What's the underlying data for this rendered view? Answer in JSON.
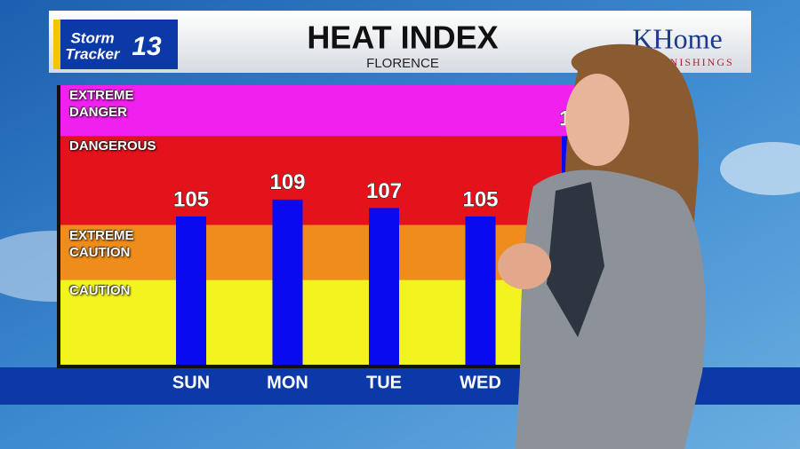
{
  "chart_data": {
    "type": "bar",
    "title": "HEAT INDEX",
    "subtitle": "FLORENCE",
    "logo": {
      "line1": "Storm",
      "line2": "Tracker",
      "number": "13"
    },
    "sponsor": {
      "name": "KHome",
      "tagline": "FURNISHINGS"
    },
    "categories": [
      "SUN",
      "MON",
      "TUE",
      "WED",
      null
    ],
    "values": [
      105,
      109,
      107,
      105,
      124
    ],
    "color": "#0a0af0",
    "ylim": [
      70,
      136
    ],
    "zones": [
      {
        "label": "CAUTION",
        "from": 70,
        "to": 90,
        "color": "#f3f320"
      },
      {
        "label": "EXTREME CAUTION",
        "from": 90,
        "to": 103,
        "color": "#ee8c1c"
      },
      {
        "label": "DANGEROUS",
        "from": 103,
        "to": 124,
        "color": "#e4121a"
      },
      {
        "label": "EXTREME DANGER",
        "from": 124,
        "to": 136,
        "color": "#f020ee"
      }
    ]
  }
}
